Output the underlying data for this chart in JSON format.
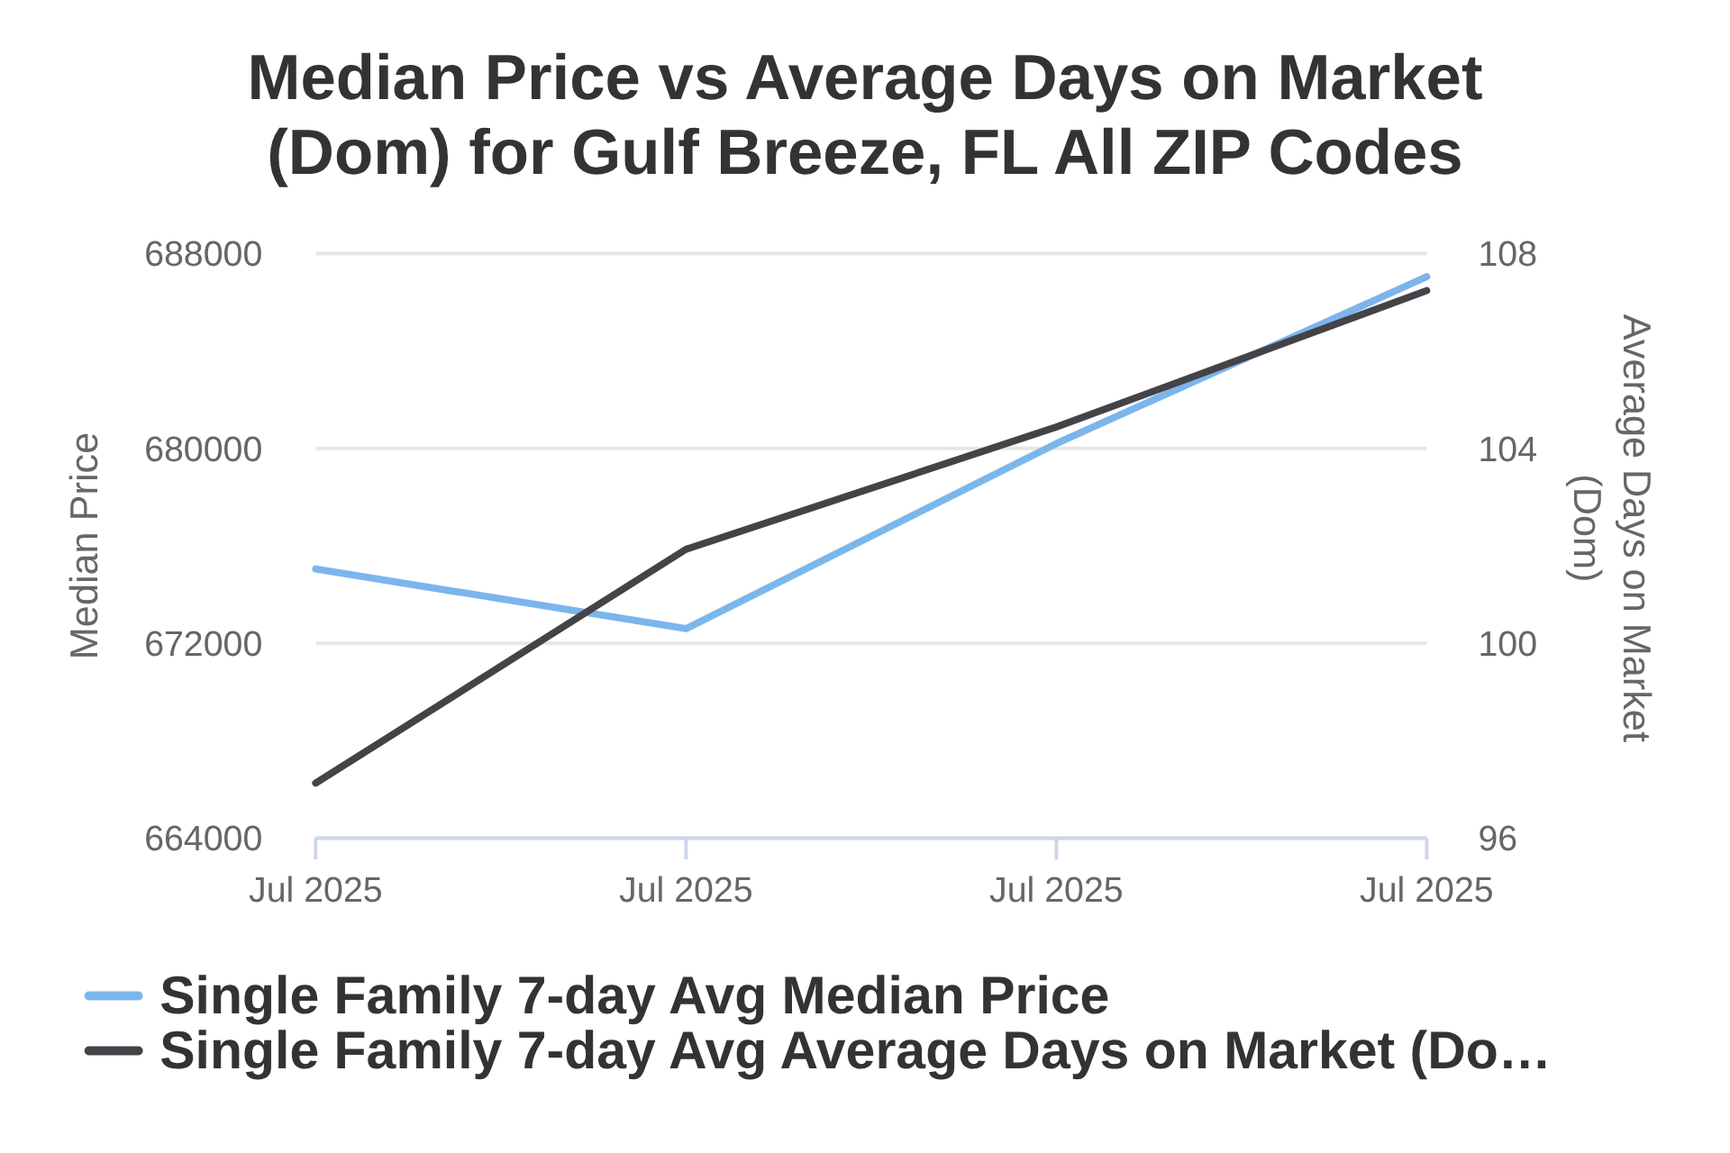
{
  "chart_data": {
    "type": "line",
    "title": "Median Price vs Average Days on Market (Dom) for Gulf Breeze, FL All ZIP Codes",
    "ylabel": "Median Price",
    "y2label": "Average Days on Market (Dom)",
    "categories": [
      "Jul 2025",
      "Jul 2025",
      "Jul 2025",
      "Jul 2025"
    ],
    "series": [
      {
        "name": "Single Family 7-day Avg Median Price",
        "color": "#7cb5ec",
        "values": [
          675050,
          672600,
          680200,
          687050
        ]
      },
      {
        "name": "Single Family 7-day Avg Average Days on Market (Do…",
        "color": "#434348",
        "axis": "y2",
        "values": [
          97.13,
          101.93,
          104.44,
          107.24
        ]
      }
    ],
    "ylim": [
      664000,
      688000
    ],
    "yticks": [
      664000,
      672000,
      680000,
      688000
    ],
    "y2lim": [
      96,
      108
    ],
    "y2ticks": [
      96,
      100,
      104,
      108
    ],
    "grid": "y",
    "legend": "bottom",
    "marker": "none",
    "line_style": "solid"
  }
}
